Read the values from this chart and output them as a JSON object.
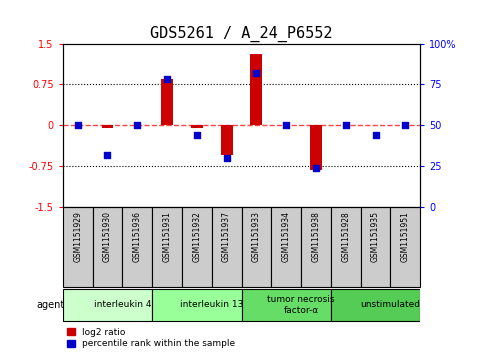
{
  "title": "GDS5261 / A_24_P6552",
  "samples": [
    "GSM1151929",
    "GSM1151930",
    "GSM1151936",
    "GSM1151931",
    "GSM1151932",
    "GSM1151937",
    "GSM1151933",
    "GSM1151934",
    "GSM1151938",
    "GSM1151928",
    "GSM1151935",
    "GSM1151951"
  ],
  "log2_ratio": [
    0.0,
    -0.05,
    0.0,
    0.85,
    -0.05,
    -0.55,
    1.3,
    0.0,
    -0.82,
    0.0,
    0.0,
    0.0
  ],
  "percentile": [
    50,
    32,
    50,
    78,
    44,
    30,
    82,
    50,
    24,
    50,
    44,
    50
  ],
  "ylim": [
    -1.5,
    1.5
  ],
  "yticks_left": [
    -1.5,
    -0.75,
    0,
    0.75,
    1.5
  ],
  "yticks_right": [
    0,
    25,
    50,
    75,
    100
  ],
  "dotted_lines": [
    -0.75,
    0.0,
    0.75
  ],
  "groups": [
    {
      "label": "interleukin 4",
      "start": 0,
      "end": 3,
      "color": "#ccffcc"
    },
    {
      "label": "interleukin 13",
      "start": 3,
      "end": 6,
      "color": "#99ff99"
    },
    {
      "label": "tumor necrosis\nfactor-α",
      "start": 6,
      "end": 9,
      "color": "#66dd66"
    },
    {
      "label": "unstimulated",
      "start": 9,
      "end": 12,
      "color": "#55cc55"
    }
  ],
  "bar_color": "#cc0000",
  "dot_color": "#0000cc",
  "zero_line_color": "#ff4444",
  "bg_color": "#ffffff",
  "plot_bg": "#ffffff",
  "sample_box_color": "#cccccc",
  "title_fontsize": 11,
  "tick_fontsize": 7,
  "bar_width": 0.4,
  "dot_size": 20
}
